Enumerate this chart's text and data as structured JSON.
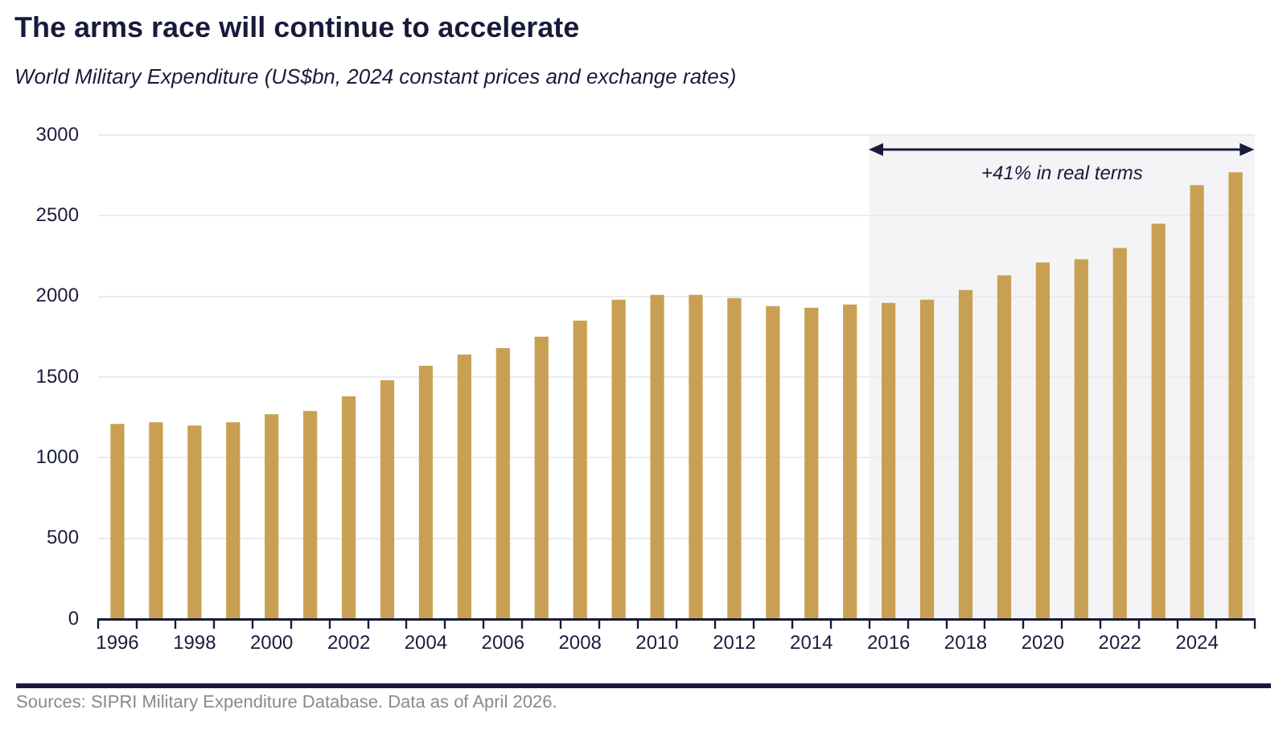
{
  "chart_data": {
    "type": "bar",
    "title": "The arms race will continue to accelerate",
    "subtitle": "World Military Expenditure (US$bn, 2024 constant prices and exchange rates)",
    "x": [
      1996,
      1997,
      1998,
      1999,
      2000,
      2001,
      2002,
      2003,
      2004,
      2005,
      2006,
      2007,
      2008,
      2009,
      2010,
      2011,
      2012,
      2013,
      2014,
      2015,
      2016,
      2017,
      2018,
      2019,
      2020,
      2021,
      2022,
      2023,
      2024,
      2025
    ],
    "values": [
      1210,
      1220,
      1200,
      1220,
      1270,
      1290,
      1380,
      1480,
      1570,
      1640,
      1680,
      1750,
      1850,
      1980,
      2010,
      2010,
      1990,
      1940,
      1930,
      1950,
      1960,
      1980,
      2040,
      2130,
      2210,
      2230,
      2300,
      2450,
      2690,
      2770
    ],
    "color": "#c9a053",
    "xlim": [
      1995.5,
      2025.5
    ],
    "xticks": [
      {
        "value": 1995.5,
        "label": null
      },
      1996,
      {
        "value": 1996.5,
        "label": null
      },
      {
        "value": 1997.5,
        "label": null
      },
      1998,
      {
        "value": 1998.5,
        "label": null
      },
      {
        "value": 1999.5,
        "label": null
      },
      2000,
      {
        "value": 2000.5,
        "label": null
      },
      {
        "value": 2001.5,
        "label": null
      },
      2002,
      {
        "value": 2002.5,
        "label": null
      },
      {
        "value": 2003.5,
        "label": null
      },
      2004,
      {
        "value": 2004.5,
        "label": null
      },
      {
        "value": 2005.5,
        "label": null
      },
      2006,
      {
        "value": 2006.5,
        "label": null
      },
      {
        "value": 2007.5,
        "label": null
      },
      2008,
      {
        "value": 2008.5,
        "label": null
      },
      {
        "value": 2009.5,
        "label": null
      },
      2010,
      {
        "value": 2010.5,
        "label": null
      },
      {
        "value": 2011.5,
        "label": null
      },
      2012,
      {
        "value": 2012.5,
        "label": null
      },
      {
        "value": 2013.5,
        "label": null
      },
      2014,
      {
        "value": 2014.5,
        "label": null
      },
      {
        "value": 2015.5,
        "label": null
      },
      2016,
      {
        "value": 2016.5,
        "label": null
      },
      {
        "value": 2017.5,
        "label": null
      },
      2018,
      {
        "value": 2018.5,
        "label": null
      },
      {
        "value": 2019.5,
        "label": null
      },
      2020,
      {
        "value": 2020.5,
        "label": null
      },
      {
        "value": 2021.5,
        "label": null
      },
      2022,
      {
        "value": 2022.5,
        "label": null
      },
      {
        "value": 2023.5,
        "label": null
      },
      2024,
      {
        "value": 2024.5,
        "label": null
      },
      {
        "value": 2025.5,
        "label": null
      }
    ],
    "ylim": [
      0,
      3000
    ],
    "yticks": [
      0,
      500,
      1000,
      1500,
      2000,
      2500,
      3000
    ],
    "grid": "y",
    "bands": [
      {
        "axis": "x",
        "from": 2015.5,
        "to": 2025.5,
        "label": "+41% in real terms",
        "color": "#f4f4f6"
      }
    ],
    "annotations": [
      "Sources: SIPRI Military Expenditure Database. Data as of April 2026."
    ]
  }
}
